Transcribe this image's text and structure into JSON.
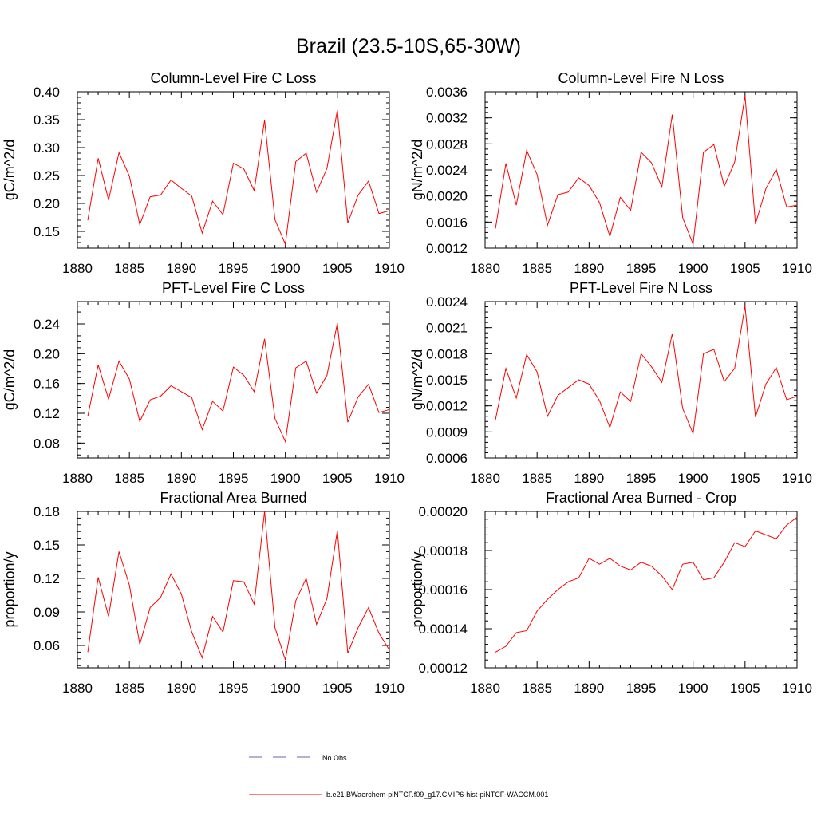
{
  "figure": {
    "title": "Brazil (23.5-10S,65-30W)",
    "legend": [
      {
        "label": "No Obs",
        "style": "dashed",
        "color": "#6666aa"
      },
      {
        "label": "b.e21.BWaerchem-piNTCF.f09_g17.CMIP6-hist-piNTCF-WACCM.001",
        "style": "solid",
        "color": "#ff0000"
      }
    ]
  },
  "chart_data": [
    {
      "type": "line",
      "title": "Column-Level Fire C Loss",
      "xlabel": "",
      "ylabel": "gC/m^2/d",
      "xlim": [
        1880,
        1910
      ],
      "ylim": [
        0.12,
        0.4
      ],
      "xticks": [
        "1880",
        "1885",
        "1890",
        "1895",
        "1900",
        "1905",
        "1910"
      ],
      "yticks": [
        "0.15",
        "0.20",
        "0.25",
        "0.30",
        "0.35",
        "0.40"
      ],
      "x": [
        1881,
        1882,
        1883,
        1884,
        1885,
        1886,
        1887,
        1888,
        1889,
        1890,
        1891,
        1892,
        1893,
        1894,
        1895,
        1896,
        1897,
        1898,
        1899,
        1900,
        1901,
        1902,
        1903,
        1904,
        1905,
        1906,
        1907,
        1908,
        1909,
        1910
      ],
      "series": [
        {
          "color": "#ff0000",
          "values": [
            0.17,
            0.281,
            0.206,
            0.291,
            0.249,
            0.162,
            0.212,
            0.215,
            0.242,
            0.227,
            0.213,
            0.147,
            0.204,
            0.18,
            0.272,
            0.262,
            0.223,
            0.349,
            0.171,
            0.127,
            0.275,
            0.29,
            0.22,
            0.263,
            0.367,
            0.165,
            0.215,
            0.24,
            0.182,
            0.187
          ]
        }
      ]
    },
    {
      "type": "line",
      "title": "Column-Level Fire N Loss",
      "xlabel": "",
      "ylabel": "gN/m^2/d",
      "xlim": [
        1880,
        1910
      ],
      "ylim": [
        0.0012,
        0.0036
      ],
      "xticks": [
        "1880",
        "1885",
        "1890",
        "1895",
        "1900",
        "1905",
        "1910"
      ],
      "yticks": [
        "0.0012",
        "0.0016",
        "0.0020",
        "0.0024",
        "0.0028",
        "0.0032",
        "0.0036"
      ],
      "x": [
        1881,
        1882,
        1883,
        1884,
        1885,
        1886,
        1887,
        1888,
        1889,
        1890,
        1891,
        1892,
        1893,
        1894,
        1895,
        1896,
        1897,
        1898,
        1899,
        1900,
        1901,
        1902,
        1903,
        1904,
        1905,
        1906,
        1907,
        1908,
        1909,
        1910
      ],
      "series": [
        {
          "color": "#ff0000",
          "values": [
            0.0015,
            0.0025,
            0.00186,
            0.0027,
            0.00233,
            0.00155,
            0.00202,
            0.00206,
            0.00228,
            0.00216,
            0.0019,
            0.00138,
            0.00198,
            0.00178,
            0.00267,
            0.00251,
            0.00214,
            0.00325,
            0.00167,
            0.00126,
            0.00267,
            0.00279,
            0.00215,
            0.00252,
            0.00354,
            0.00157,
            0.00211,
            0.00241,
            0.00183,
            0.00186
          ]
        }
      ]
    },
    {
      "type": "line",
      "title": "PFT-Level Fire C Loss",
      "xlabel": "",
      "ylabel": "gC/m^2/d",
      "xlim": [
        1880,
        1910
      ],
      "ylim": [
        0.06,
        0.27
      ],
      "xticks": [
        "1880",
        "1885",
        "1890",
        "1895",
        "1900",
        "1905",
        "1910"
      ],
      "yticks": [
        "0.08",
        "0.12",
        "0.16",
        "0.20",
        "0.24"
      ],
      "x": [
        1881,
        1882,
        1883,
        1884,
        1885,
        1886,
        1887,
        1888,
        1889,
        1890,
        1891,
        1892,
        1893,
        1894,
        1895,
        1896,
        1897,
        1898,
        1899,
        1900,
        1901,
        1902,
        1903,
        1904,
        1905,
        1906,
        1907,
        1908,
        1909,
        1910
      ],
      "series": [
        {
          "color": "#ff0000",
          "values": [
            0.116,
            0.185,
            0.139,
            0.19,
            0.166,
            0.109,
            0.138,
            0.143,
            0.157,
            0.149,
            0.141,
            0.098,
            0.136,
            0.123,
            0.182,
            0.171,
            0.149,
            0.22,
            0.113,
            0.082,
            0.181,
            0.19,
            0.147,
            0.171,
            0.241,
            0.108,
            0.142,
            0.159,
            0.121,
            0.125
          ]
        }
      ]
    },
    {
      "type": "line",
      "title": "PFT-Level Fire N Loss",
      "xlabel": "",
      "ylabel": "gN/m^2/d",
      "xlim": [
        1880,
        1910
      ],
      "ylim": [
        0.0006,
        0.0024
      ],
      "xticks": [
        "1880",
        "1885",
        "1890",
        "1895",
        "1900",
        "1905",
        "1910"
      ],
      "yticks": [
        "0.0006",
        "0.0009",
        "0.0012",
        "0.0015",
        "0.0018",
        "0.0021",
        "0.0024"
      ],
      "x": [
        1881,
        1882,
        1883,
        1884,
        1885,
        1886,
        1887,
        1888,
        1889,
        1890,
        1891,
        1892,
        1893,
        1894,
        1895,
        1896,
        1897,
        1898,
        1899,
        1900,
        1901,
        1902,
        1903,
        1904,
        1905,
        1906,
        1907,
        1908,
        1909,
        1910
      ],
      "series": [
        {
          "color": "#ff0000",
          "values": [
            0.00104,
            0.00163,
            0.00129,
            0.00179,
            0.00159,
            0.00108,
            0.00132,
            0.00141,
            0.0015,
            0.00145,
            0.00126,
            0.00095,
            0.00136,
            0.00125,
            0.0018,
            0.00165,
            0.00147,
            0.00203,
            0.00117,
            0.00088,
            0.0018,
            0.00185,
            0.00148,
            0.00163,
            0.00235,
            0.00107,
            0.00145,
            0.00164,
            0.00127,
            0.00131
          ]
        }
      ]
    },
    {
      "type": "line",
      "title": "Fractional Area Burned",
      "xlabel": "",
      "ylabel": "proportion/y",
      "xlim": [
        1880,
        1910
      ],
      "ylim": [
        0.04,
        0.18
      ],
      "xticks": [
        "1880",
        "1885",
        "1890",
        "1895",
        "1900",
        "1905",
        "1910"
      ],
      "yticks": [
        "0.06",
        "0.09",
        "0.12",
        "0.15",
        "0.18"
      ],
      "x": [
        1881,
        1882,
        1883,
        1884,
        1885,
        1886,
        1887,
        1888,
        1889,
        1890,
        1891,
        1892,
        1893,
        1894,
        1895,
        1896,
        1897,
        1898,
        1899,
        1900,
        1901,
        1902,
        1903,
        1904,
        1905,
        1906,
        1907,
        1908,
        1909,
        1910
      ],
      "series": [
        {
          "color": "#ff0000",
          "values": [
            0.054,
            0.121,
            0.086,
            0.144,
            0.114,
            0.061,
            0.094,
            0.103,
            0.124,
            0.106,
            0.072,
            0.049,
            0.086,
            0.072,
            0.118,
            0.117,
            0.097,
            0.18,
            0.076,
            0.047,
            0.1,
            0.12,
            0.079,
            0.102,
            0.163,
            0.053,
            0.076,
            0.094,
            0.071,
            0.056
          ]
        }
      ]
    },
    {
      "type": "line",
      "title": "Fractional Area Burned - Crop",
      "xlabel": "",
      "ylabel": "proportion/y",
      "xlim": [
        1880,
        1910
      ],
      "ylim": [
        0.00012,
        0.0002
      ],
      "xticks": [
        "1880",
        "1885",
        "1890",
        "1895",
        "1900",
        "1905",
        "1910"
      ],
      "yticks": [
        "0.00012",
        "0.00014",
        "0.00016",
        "0.00018",
        "0.00020"
      ],
      "x": [
        1881,
        1882,
        1883,
        1884,
        1885,
        1886,
        1887,
        1888,
        1889,
        1890,
        1891,
        1892,
        1893,
        1894,
        1895,
        1896,
        1897,
        1898,
        1899,
        1900,
        1901,
        1902,
        1903,
        1904,
        1905,
        1906,
        1907,
        1908,
        1909,
        1910
      ],
      "series": [
        {
          "color": "#ff0000",
          "values": [
            0.000128,
            0.000131,
            0.000138,
            0.000139,
            0.000149,
            0.000155,
            0.00016,
            0.000164,
            0.000166,
            0.000176,
            0.000173,
            0.000176,
            0.000172,
            0.00017,
            0.000174,
            0.000172,
            0.000167,
            0.00016,
            0.000173,
            0.000174,
            0.000165,
            0.000166,
            0.000174,
            0.000184,
            0.000182,
            0.00019,
            0.000188,
            0.000186,
            0.000193,
            0.000197
          ]
        }
      ]
    }
  ]
}
